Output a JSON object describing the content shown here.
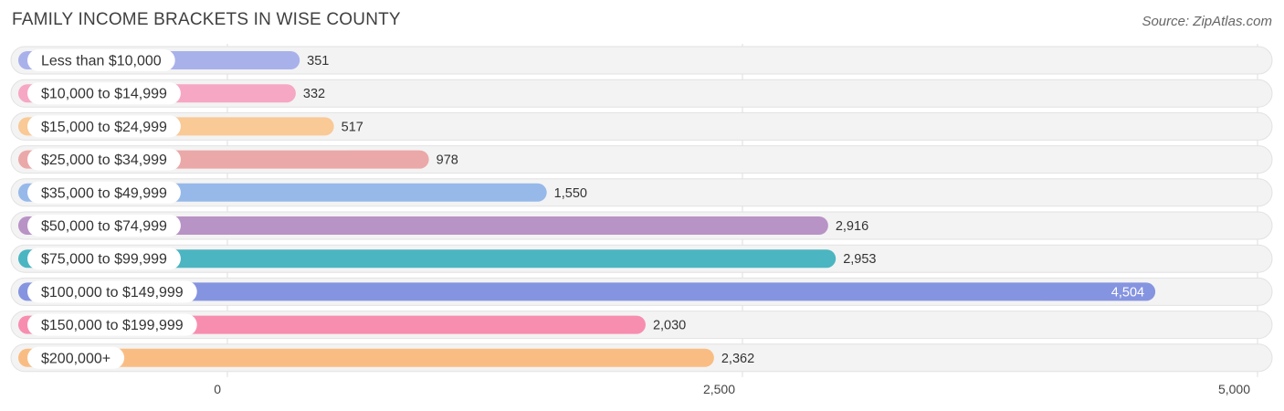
{
  "header": {
    "title": "FAMILY INCOME BRACKETS IN WISE COUNTY",
    "source": "Source: ZipAtlas.com"
  },
  "chart_data": {
    "type": "bar",
    "orientation": "horizontal",
    "title": "FAMILY INCOME BRACKETS IN WISE COUNTY",
    "xlabel": "",
    "ylabel": "",
    "xlim": [
      0,
      5000
    ],
    "ticks": [
      {
        "value": 0,
        "label": "0"
      },
      {
        "value": 2500,
        "label": "2,500"
      },
      {
        "value": 5000,
        "label": "5,000"
      }
    ],
    "categories": [
      "Less than $10,000",
      "$10,000 to $14,999",
      "$15,000 to $24,999",
      "$25,000 to $34,999",
      "$35,000 to $49,999",
      "$50,000 to $74,999",
      "$75,000 to $99,999",
      "$100,000 to $149,999",
      "$150,000 to $199,999",
      "$200,000+"
    ],
    "values": [
      351,
      332,
      517,
      978,
      1550,
      2916,
      2953,
      4504,
      2030,
      2362
    ],
    "value_labels": [
      "351",
      "332",
      "517",
      "978",
      "1,550",
      "2,916",
      "2,953",
      "4,504",
      "2,030",
      "2,362"
    ],
    "colors": [
      "#a9b1eb",
      "#f6a7c4",
      "#f9c996",
      "#eba8a8",
      "#97b9ea",
      "#b893c6",
      "#4bb5c1",
      "#8594e0",
      "#f78eb0",
      "#f9bd83"
    ],
    "grid": true
  }
}
